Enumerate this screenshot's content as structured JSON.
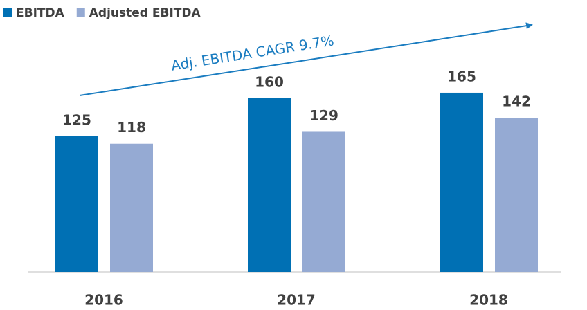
{
  "chart_data": {
    "type": "bar",
    "categories": [
      "2016",
      "2017",
      "2018"
    ],
    "series": [
      {
        "name": "EBITDA",
        "color": "#0070b4",
        "values": [
          125,
          160,
          165
        ]
      },
      {
        "name": "Adjusted EBITDA",
        "color": "#95aad3",
        "values": [
          118,
          129,
          142
        ]
      }
    ],
    "annotation": "Adj. EBITDA CAGR 9.7%",
    "annotation_color": "#1a7cc0"
  }
}
